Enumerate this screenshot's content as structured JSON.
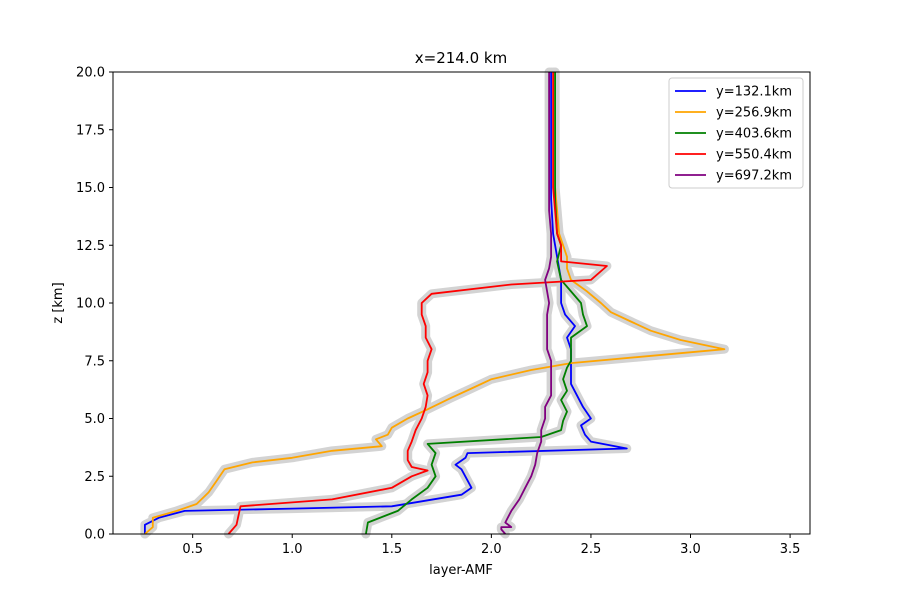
{
  "chart_data": {
    "type": "line",
    "title": "x=214.0 km",
    "xlabel": "layer-AMF",
    "ylabel": "z [km]",
    "xlim": [
      0.1,
      3.6
    ],
    "ylim": [
      0,
      20
    ],
    "xticks": [
      "0.5",
      "1.0",
      "1.5",
      "2.0",
      "2.5",
      "3.0",
      "3.5"
    ],
    "yticks": [
      "0.0",
      "2.5",
      "5.0",
      "7.5",
      "10.0",
      "12.5",
      "15.0",
      "17.5",
      "20.0"
    ],
    "grid": false,
    "legend_position": "top-right",
    "band_color": "#d3d3d3",
    "series": [
      {
        "name": "y=132.1km",
        "color": "#0000ff",
        "points": [
          [
            0.26,
            0
          ],
          [
            0.26,
            0.4
          ],
          [
            0.33,
            0.7
          ],
          [
            0.46,
            1.0
          ],
          [
            1.0,
            1.1
          ],
          [
            1.5,
            1.2
          ],
          [
            1.85,
            1.7
          ],
          [
            1.9,
            2.0
          ],
          [
            1.85,
            2.8
          ],
          [
            1.82,
            3.0
          ],
          [
            1.87,
            3.3
          ],
          [
            1.88,
            3.5
          ],
          [
            2.68,
            3.7
          ],
          [
            2.5,
            4.0
          ],
          [
            2.47,
            4.3
          ],
          [
            2.45,
            4.7
          ],
          [
            2.5,
            5.0
          ],
          [
            2.46,
            5.5
          ],
          [
            2.43,
            6.0
          ],
          [
            2.4,
            6.5
          ],
          [
            2.4,
            7.0
          ],
          [
            2.4,
            7.5
          ],
          [
            2.4,
            8.0
          ],
          [
            2.38,
            8.5
          ],
          [
            2.42,
            9.0
          ],
          [
            2.37,
            9.5
          ],
          [
            2.35,
            10.0
          ],
          [
            2.35,
            11.0
          ],
          [
            2.33,
            12.0
          ],
          [
            2.31,
            13.0
          ],
          [
            2.3,
            14.5
          ],
          [
            2.3,
            16.0
          ],
          [
            2.3,
            18.0
          ],
          [
            2.3,
            20.0
          ]
        ]
      },
      {
        "name": "y=256.9km",
        "color": "#ffa500",
        "points": [
          [
            0.26,
            0
          ],
          [
            0.3,
            0.3
          ],
          [
            0.3,
            0.7
          ],
          [
            0.42,
            1.0
          ],
          [
            0.52,
            1.3
          ],
          [
            0.58,
            1.8
          ],
          [
            0.62,
            2.3
          ],
          [
            0.66,
            2.8
          ],
          [
            0.8,
            3.1
          ],
          [
            1.0,
            3.3
          ],
          [
            1.2,
            3.6
          ],
          [
            1.45,
            3.8
          ],
          [
            1.42,
            4.1
          ],
          [
            1.48,
            4.3
          ],
          [
            1.5,
            4.6
          ],
          [
            1.58,
            5.0
          ],
          [
            1.68,
            5.4
          ],
          [
            1.8,
            5.9
          ],
          [
            1.9,
            6.3
          ],
          [
            2.0,
            6.7
          ],
          [
            2.2,
            7.1
          ],
          [
            2.4,
            7.4
          ],
          [
            3.17,
            8.0
          ],
          [
            2.95,
            8.4
          ],
          [
            2.8,
            8.8
          ],
          [
            2.7,
            9.2
          ],
          [
            2.6,
            9.6
          ],
          [
            2.55,
            10.0
          ],
          [
            2.48,
            10.5
          ],
          [
            2.4,
            11.0
          ],
          [
            2.38,
            11.5
          ],
          [
            2.38,
            12.0
          ],
          [
            2.36,
            12.5
          ],
          [
            2.34,
            13.0
          ],
          [
            2.33,
            14.0
          ],
          [
            2.32,
            15.0
          ],
          [
            2.32,
            17.0
          ],
          [
            2.32,
            20.0
          ]
        ]
      },
      {
        "name": "y=403.6km",
        "color": "#008000",
        "points": [
          [
            1.37,
            0
          ],
          [
            1.38,
            0.5
          ],
          [
            1.47,
            0.8
          ],
          [
            1.53,
            1.0
          ],
          [
            1.6,
            1.5
          ],
          [
            1.68,
            2.0
          ],
          [
            1.72,
            2.5
          ],
          [
            1.7,
            3.0
          ],
          [
            1.72,
            3.5
          ],
          [
            1.68,
            3.9
          ],
          [
            2.25,
            4.2
          ],
          [
            2.35,
            4.5
          ],
          [
            2.36,
            4.9
          ],
          [
            2.38,
            5.3
          ],
          [
            2.35,
            5.8
          ],
          [
            2.38,
            6.2
          ],
          [
            2.36,
            6.7
          ],
          [
            2.38,
            7.2
          ],
          [
            2.4,
            7.5
          ],
          [
            2.4,
            8.5
          ],
          [
            2.48,
            9.0
          ],
          [
            2.46,
            9.5
          ],
          [
            2.45,
            10.0
          ],
          [
            2.4,
            10.5
          ],
          [
            2.35,
            11.0
          ],
          [
            2.33,
            11.8
          ],
          [
            2.35,
            12.5
          ],
          [
            2.33,
            13.0
          ],
          [
            2.32,
            14.5
          ],
          [
            2.32,
            16.0
          ],
          [
            2.32,
            20.0
          ]
        ]
      },
      {
        "name": "y=550.4km",
        "color": "#ff0000",
        "points": [
          [
            0.68,
            0
          ],
          [
            0.72,
            0.4
          ],
          [
            0.73,
            0.8
          ],
          [
            0.74,
            1.2
          ],
          [
            1.2,
            1.5
          ],
          [
            1.5,
            2.0
          ],
          [
            1.6,
            2.5
          ],
          [
            1.68,
            2.75
          ],
          [
            1.6,
            2.9
          ],
          [
            1.58,
            3.2
          ],
          [
            1.58,
            3.6
          ],
          [
            1.6,
            4.0
          ],
          [
            1.62,
            4.5
          ],
          [
            1.65,
            5.0
          ],
          [
            1.67,
            5.5
          ],
          [
            1.68,
            6.0
          ],
          [
            1.66,
            6.5
          ],
          [
            1.68,
            7.0
          ],
          [
            1.68,
            7.5
          ],
          [
            1.7,
            8.0
          ],
          [
            1.67,
            8.5
          ],
          [
            1.67,
            9.0
          ],
          [
            1.65,
            9.5
          ],
          [
            1.65,
            10.0
          ],
          [
            1.7,
            10.4
          ],
          [
            2.1,
            10.8
          ],
          [
            2.5,
            11.0
          ],
          [
            2.58,
            11.6
          ],
          [
            2.35,
            11.8
          ],
          [
            2.35,
            12.5
          ],
          [
            2.33,
            13.0
          ],
          [
            2.32,
            14.0
          ],
          [
            2.31,
            15.0
          ],
          [
            2.31,
            17.0
          ],
          [
            2.31,
            20.0
          ]
        ]
      },
      {
        "name": "y=697.2km",
        "color": "#800080",
        "points": [
          [
            2.07,
            0
          ],
          [
            2.05,
            0.2
          ],
          [
            2.05,
            0.3
          ],
          [
            2.1,
            0.3
          ],
          [
            2.07,
            0.5
          ],
          [
            2.1,
            1.0
          ],
          [
            2.14,
            1.5
          ],
          [
            2.17,
            2.0
          ],
          [
            2.2,
            2.5
          ],
          [
            2.22,
            3.0
          ],
          [
            2.23,
            3.5
          ],
          [
            2.25,
            4.0
          ],
          [
            2.25,
            4.5
          ],
          [
            2.27,
            5.0
          ],
          [
            2.27,
            5.5
          ],
          [
            2.3,
            6.0
          ],
          [
            2.3,
            6.5
          ],
          [
            2.3,
            7.0
          ],
          [
            2.3,
            7.5
          ],
          [
            2.28,
            8.0
          ],
          [
            2.28,
            8.5
          ],
          [
            2.28,
            9.0
          ],
          [
            2.28,
            9.5
          ],
          [
            2.29,
            10.0
          ],
          [
            2.28,
            10.5
          ],
          [
            2.27,
            11.0
          ],
          [
            2.29,
            11.5
          ],
          [
            2.3,
            12.0
          ],
          [
            2.3,
            12.5
          ],
          [
            2.3,
            13.0
          ],
          [
            2.29,
            14.0
          ],
          [
            2.29,
            15.0
          ],
          [
            2.29,
            16.5
          ],
          [
            2.29,
            18.0
          ],
          [
            2.29,
            20.0
          ]
        ]
      }
    ]
  }
}
